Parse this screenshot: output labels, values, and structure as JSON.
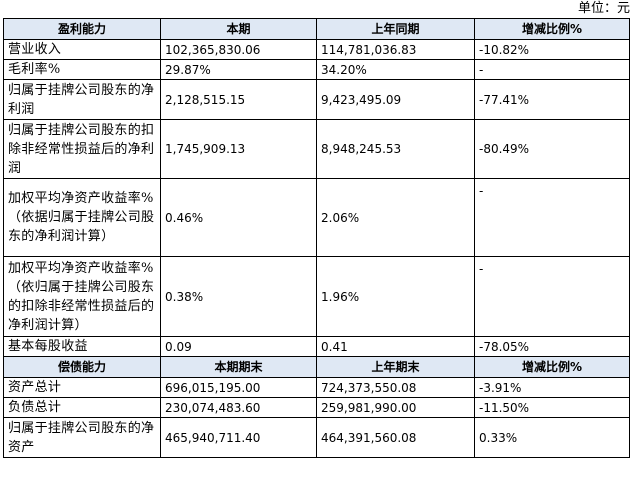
{
  "unit_label": "单位：元",
  "section1": {
    "headers": [
      "盈利能力",
      "本期",
      "上年同期",
      "增减比例%"
    ],
    "rows": [
      {
        "label": "营业收入",
        "current": "102,365,830.06",
        "prior": "114,781,036.83",
        "change": "-10.82%"
      },
      {
        "label": "毛利率%",
        "current": "29.87%",
        "prior": "34.20%",
        "change": "-"
      },
      {
        "label": "归属于挂牌公司股东的净利润",
        "current": "2,128,515.15",
        "prior": "9,423,495.09",
        "change": "-77.41%"
      },
      {
        "label": "归属于挂牌公司股东的扣除非经常性损益后的净利润",
        "current": "1,745,909.13",
        "prior": "8,948,245.53",
        "change": "-80.49%"
      },
      {
        "label": "加权平均净资产收益率%（依据归属于挂牌公司股东的净利润计算）",
        "current": "0.46%",
        "prior": "2.06%",
        "change": "-"
      },
      {
        "label": "加权平均净资产收益率%（依归属于挂牌公司股东的扣除非经常性损益后的净利润计算）",
        "current": "0.38%",
        "prior": "1.96%",
        "change": "-"
      },
      {
        "label": "基本每股收益",
        "current": "0.09",
        "prior": "0.41",
        "change": "-78.05%"
      }
    ]
  },
  "section2": {
    "headers": [
      "偿债能力",
      "本期期末",
      "上年期末",
      "增减比例%"
    ],
    "rows": [
      {
        "label": "资产总计",
        "current": "696,015,195.00",
        "prior": "724,373,550.08",
        "change": "-3.91%"
      },
      {
        "label": "负债总计",
        "current": "230,074,483.60",
        "prior": "259,981,990.00",
        "change": "-11.50%"
      },
      {
        "label": "归属于挂牌公司股东的净资产",
        "current": "465,940,711.40",
        "prior": "464,391,560.08",
        "change": "0.33%"
      }
    ]
  },
  "colors": {
    "header_bg": "#dfe8f4",
    "border": "#000000"
  }
}
